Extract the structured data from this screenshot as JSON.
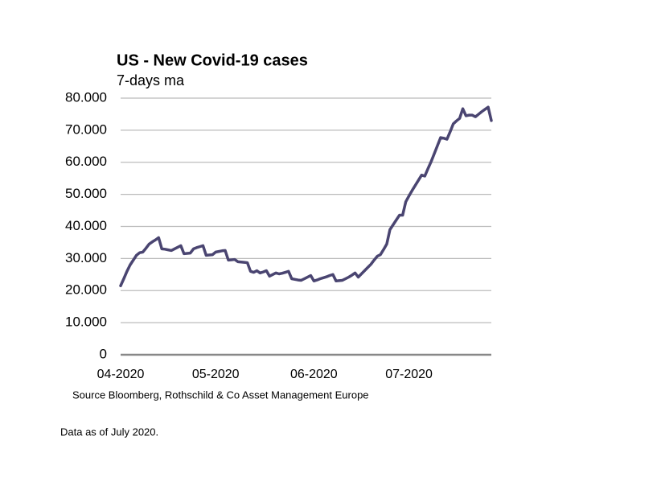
{
  "chart_data": {
    "type": "line",
    "title": "US - New Covid-19 cases",
    "subtitle": "7-days ma",
    "source": "Source Bloomberg, Rothschild & Co Asset Management Europe",
    "note": "Data as of July 2020.",
    "categories": [
      "04-2020",
      null,
      null,
      null,
      null,
      null,
      null,
      null,
      null,
      null,
      null,
      null,
      null,
      null,
      null,
      null,
      null,
      null,
      null,
      null,
      null,
      null,
      null,
      null,
      null,
      null,
      null,
      null,
      null,
      null,
      "05-2020",
      null,
      null,
      null,
      null,
      null,
      null,
      null,
      null,
      null,
      null,
      null,
      null,
      null,
      null,
      null,
      null,
      null,
      null,
      null,
      null,
      null,
      null,
      null,
      null,
      null,
      null,
      null,
      null,
      null,
      null,
      "06-2020",
      null,
      null,
      null,
      null,
      null,
      null,
      null,
      null,
      null,
      null,
      null,
      null,
      null,
      null,
      null,
      null,
      null,
      null,
      null,
      null,
      null,
      null,
      null,
      null,
      null,
      null,
      null,
      null,
      null,
      "07-2020",
      null,
      null,
      null,
      null,
      null,
      null,
      null,
      null,
      null,
      null,
      null,
      null,
      null,
      null,
      null,
      null,
      null,
      null,
      null,
      null,
      null,
      null,
      null,
      null,
      null,
      null
    ],
    "series": [
      {
        "color": "#4a4571",
        "values": [
          21500,
          23700,
          26000,
          28000,
          29500,
          31000,
          31800,
          32000,
          33200,
          34500,
          35200,
          35800,
          36500,
          33000,
          32900,
          32700,
          32500,
          33000,
          33500,
          34000,
          31500,
          31600,
          31700,
          33000,
          33400,
          33700,
          34000,
          31000,
          31100,
          31200,
          32000,
          32200,
          32400,
          32500,
          29500,
          29600,
          29700,
          29000,
          28900,
          28800,
          28700,
          26000,
          25700,
          26200,
          25500,
          25800,
          26200,
          24500,
          25000,
          25500,
          25200,
          25400,
          25700,
          26000,
          23700,
          23500,
          23300,
          23200,
          23700,
          24200,
          24700,
          23000,
          23300,
          23700,
          24000,
          24300,
          24700,
          25000,
          23000,
          23100,
          23200,
          23700,
          24200,
          24800,
          25500,
          24200,
          25200,
          26200,
          27200,
          28200,
          29500,
          30700,
          31200,
          32800,
          34500,
          39000,
          40500,
          42000,
          43500,
          43500,
          47700,
          49500,
          51200,
          52800,
          54400,
          56000,
          55700,
          58000,
          60200,
          62700,
          65200,
          67700,
          67500,
          67200,
          69500,
          72000,
          72900,
          73700,
          76700,
          74500,
          74700,
          74700,
          74200,
          75000,
          75800,
          76500,
          77200,
          73000
        ]
      }
    ],
    "ylim": [
      0,
      80000
    ],
    "yticks": [
      0,
      {
        "value": 10000,
        "label": "10.000"
      },
      {
        "value": 20000,
        "label": "20.000"
      },
      {
        "value": 30000,
        "label": "30.000"
      },
      {
        "value": 40000,
        "label": "40.000"
      },
      {
        "value": 50000,
        "label": "50.000"
      },
      {
        "value": 60000,
        "label": "60.000"
      },
      {
        "value": 70000,
        "label": "70.000"
      },
      {
        "value": 80000,
        "label": "80.000"
      }
    ],
    "grid": true
  }
}
